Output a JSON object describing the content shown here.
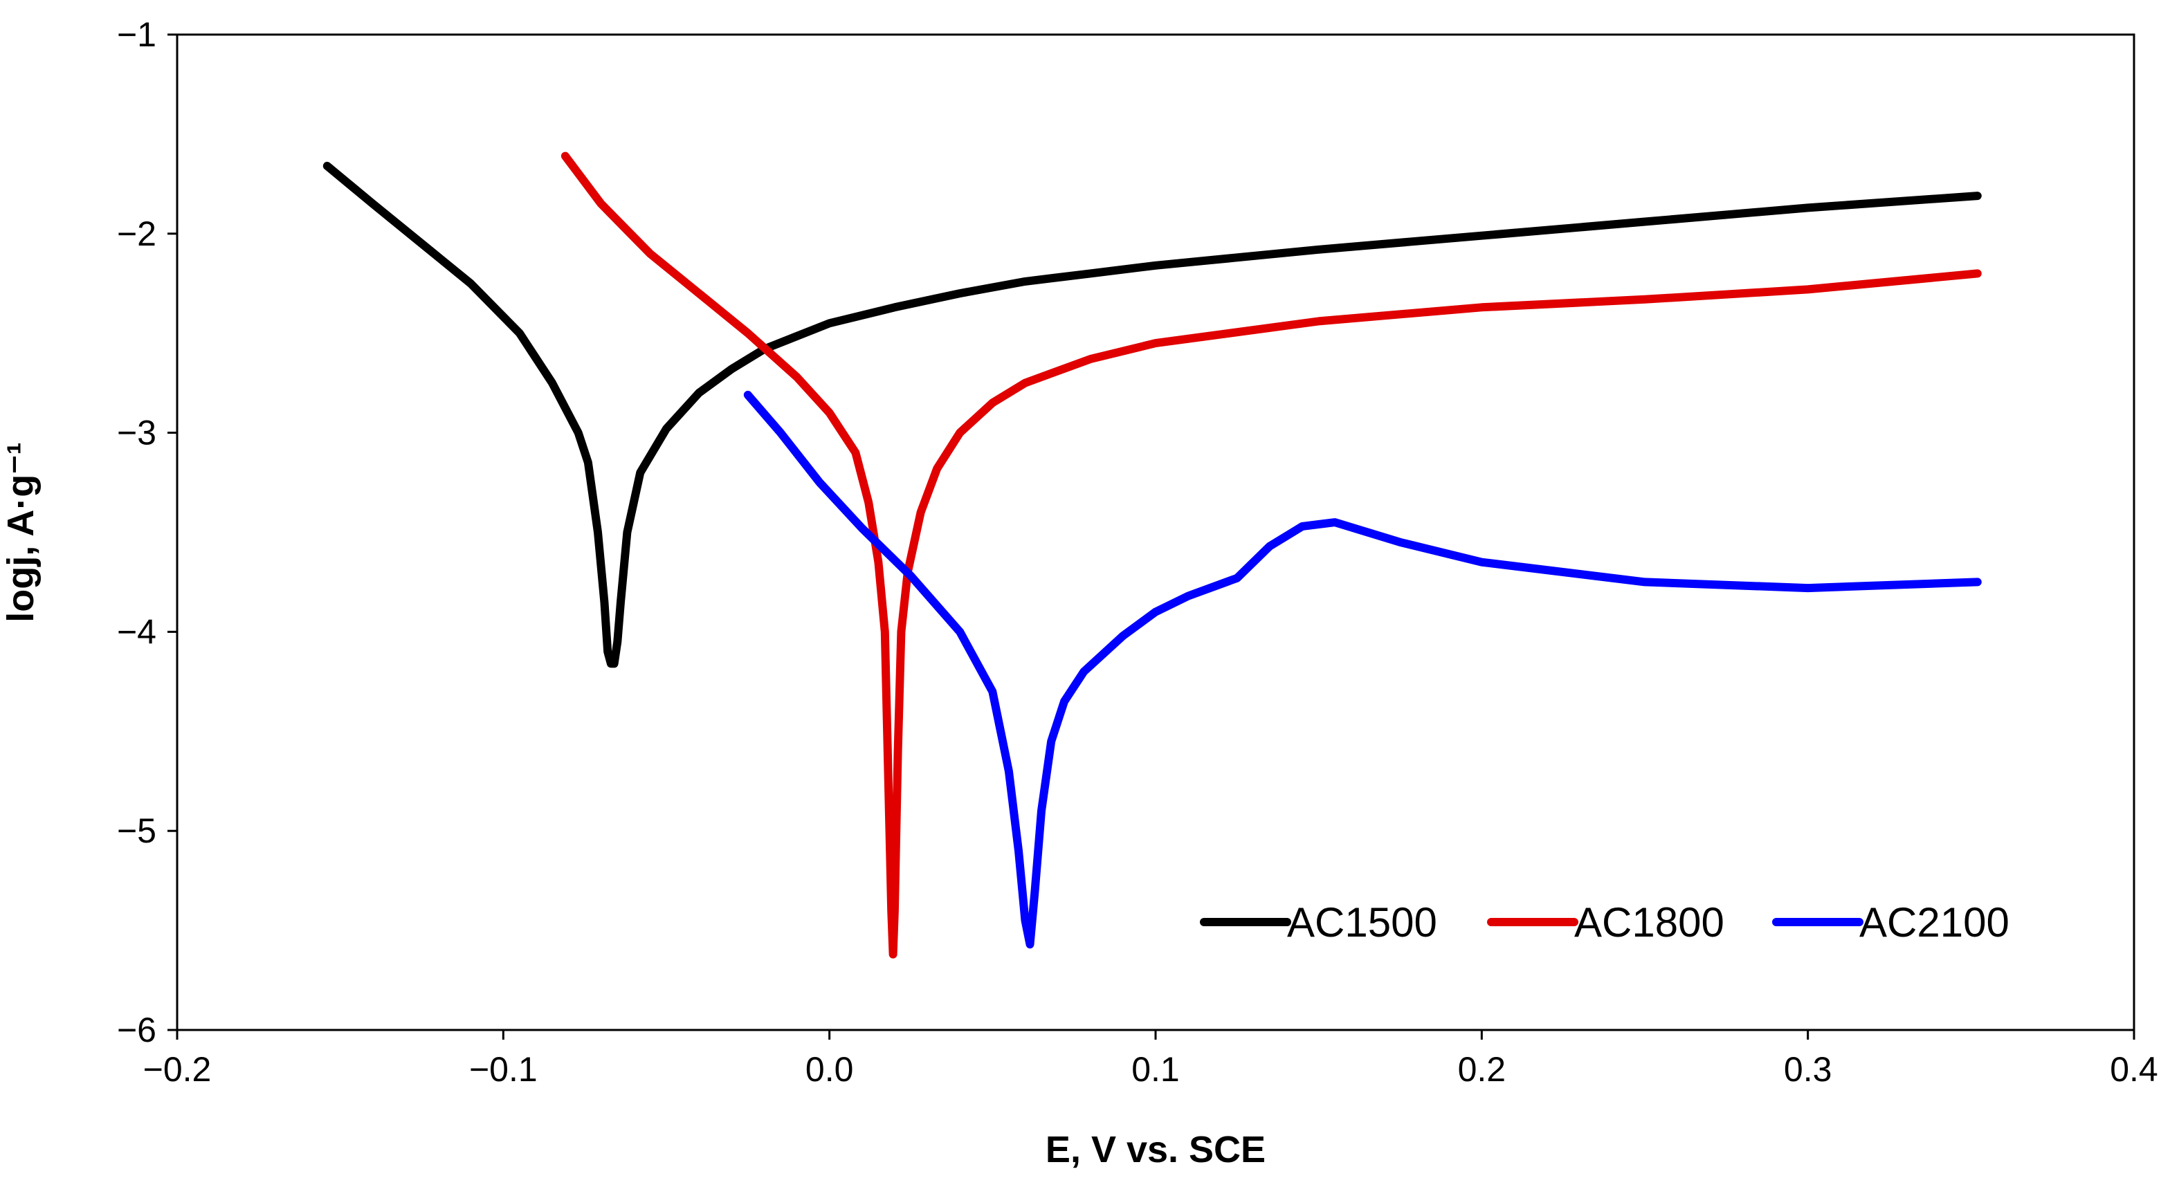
{
  "chart_data": {
    "type": "line",
    "xlabel": "E, V vs. SCE",
    "ylabel": "logj, A·g⁻¹",
    "xlim": [
      -0.2,
      0.4
    ],
    "ylim": [
      -6,
      -1
    ],
    "xticks": [
      -0.2,
      -0.1,
      0.0,
      0.1,
      0.2,
      0.3,
      0.4
    ],
    "xtick_labels": [
      "−0.2",
      "−0.1",
      "0.0",
      "0.1",
      "0.2",
      "0.3",
      "0.4"
    ],
    "yticks": [
      -6,
      -5,
      -4,
      -3,
      -2,
      -1
    ],
    "ytick_labels": [
      "−6",
      "−5",
      "−4",
      "−3",
      "−2",
      "−1"
    ],
    "grid": false,
    "legend_position": "bottom-right",
    "series": [
      {
        "name": "AC1500",
        "color": "#000000",
        "x": [
          -0.154,
          -0.14,
          -0.125,
          -0.11,
          -0.095,
          -0.085,
          -0.077,
          -0.074,
          -0.071,
          -0.069,
          -0.068,
          -0.067,
          -0.066,
          -0.065,
          -0.064,
          -0.062,
          -0.058,
          -0.05,
          -0.04,
          -0.03,
          -0.02,
          0.0,
          0.02,
          0.04,
          0.06,
          0.08,
          0.1,
          0.15,
          0.2,
          0.25,
          0.3,
          0.352
        ],
        "y": [
          -1.66,
          -1.85,
          -2.05,
          -2.25,
          -2.5,
          -2.75,
          -3.0,
          -3.15,
          -3.5,
          -3.85,
          -4.1,
          -4.16,
          -4.16,
          -4.05,
          -3.85,
          -3.5,
          -3.2,
          -2.98,
          -2.8,
          -2.68,
          -2.58,
          -2.45,
          -2.37,
          -2.3,
          -2.24,
          -2.2,
          -2.16,
          -2.08,
          -2.01,
          -1.94,
          -1.87,
          -1.81
        ]
      },
      {
        "name": "AC1800",
        "color": "#e00000",
        "x": [
          -0.081,
          -0.07,
          -0.055,
          -0.04,
          -0.025,
          -0.01,
          0.0,
          0.008,
          0.012,
          0.015,
          0.017,
          0.018,
          0.019,
          0.0195,
          0.02,
          0.021,
          0.022,
          0.024,
          0.028,
          0.033,
          0.04,
          0.05,
          0.06,
          0.08,
          0.1,
          0.15,
          0.2,
          0.25,
          0.3,
          0.352
        ],
        "y": [
          -1.61,
          -1.85,
          -2.1,
          -2.3,
          -2.5,
          -2.72,
          -2.9,
          -3.1,
          -3.35,
          -3.65,
          -4.0,
          -4.7,
          -5.4,
          -5.62,
          -5.4,
          -4.6,
          -4.0,
          -3.7,
          -3.4,
          -3.18,
          -3.0,
          -2.85,
          -2.75,
          -2.63,
          -2.55,
          -2.44,
          -2.37,
          -2.33,
          -2.28,
          -2.2
        ]
      },
      {
        "name": "AC2100",
        "color": "#0000ff",
        "x": [
          -0.025,
          -0.015,
          -0.003,
          0.01,
          0.025,
          0.04,
          0.05,
          0.055,
          0.058,
          0.06,
          0.0615,
          0.063,
          0.065,
          0.068,
          0.072,
          0.078,
          0.09,
          0.1,
          0.11,
          0.125,
          0.135,
          0.145,
          0.155,
          0.165,
          0.175,
          0.2,
          0.25,
          0.3,
          0.352
        ],
        "y": [
          -2.81,
          -3.0,
          -3.25,
          -3.48,
          -3.72,
          -4.0,
          -4.3,
          -4.7,
          -5.1,
          -5.45,
          -5.57,
          -5.3,
          -4.9,
          -4.55,
          -4.35,
          -4.2,
          -4.02,
          -3.9,
          -3.82,
          -3.73,
          -3.57,
          -3.47,
          -3.45,
          -3.5,
          -3.55,
          -3.65,
          -3.75,
          -3.78,
          -3.75
        ]
      }
    ]
  }
}
